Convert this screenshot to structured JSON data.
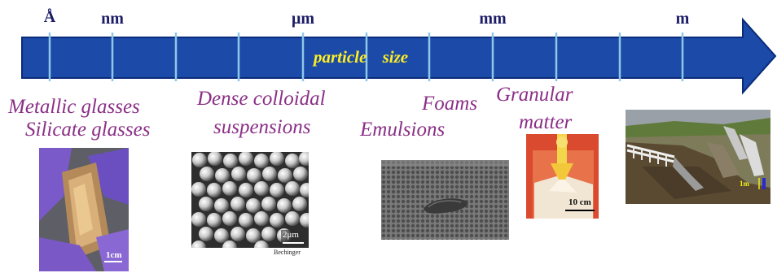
{
  "scale": {
    "labels": [
      "Å",
      "nm",
      "μm",
      "mm",
      "m"
    ],
    "axis_text": "particle size"
  },
  "categories": {
    "metallic_glasses": "Metallic glasses",
    "silicate_glasses": "Silicate glasses",
    "dense_line1": "Dense colloidal",
    "dense_line2": "suspensions",
    "foams": "Foams",
    "emulsions": "Emulsions",
    "granular_line1": "Granular",
    "granular_line2": "matter"
  },
  "images": {
    "metallic": {
      "scale_label": "1cm"
    },
    "colloid": {
      "scale_label": "2μm",
      "credit": "Bechinger"
    },
    "granular": {
      "scale_label": "10 cm"
    },
    "landslide": {
      "scale_label": "1m"
    }
  },
  "colors": {
    "arrow_fill": "#1b4aa8",
    "arrow_stroke": "#0a2a7a",
    "tick": "#8ec8e8",
    "category_text": "#8a2f86",
    "scale_text": "#1a1a66",
    "axis_text": "#ffee22"
  }
}
